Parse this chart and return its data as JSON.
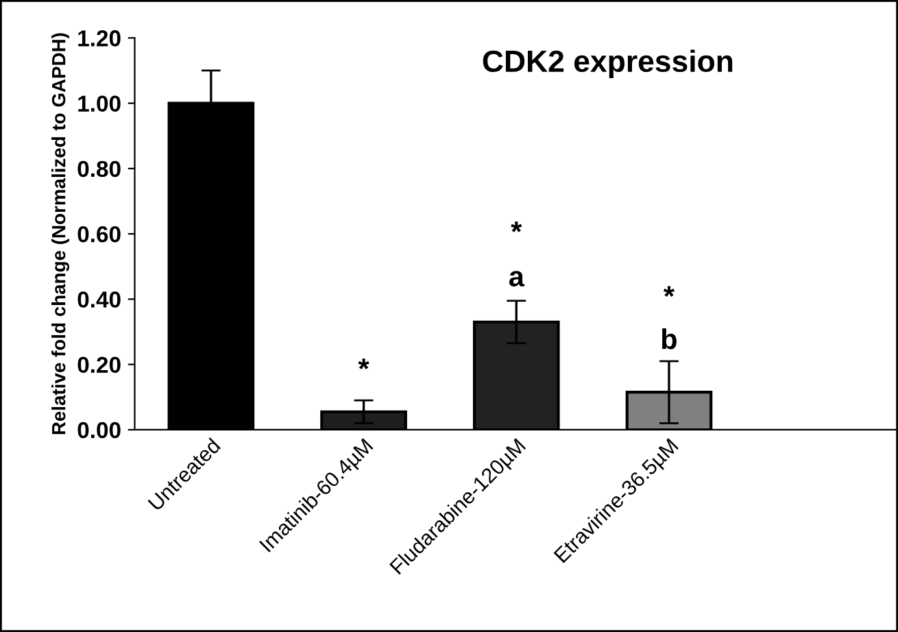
{
  "chart_data": {
    "type": "bar",
    "title": "CDK2 expression",
    "ylabel": "Relative fold change (Normalized to GAPDH)",
    "categories": [
      "Untreated",
      "Imatinib-60.4µM",
      "Fludarabine-120µM",
      "Etravirine-36.5µM"
    ],
    "values": [
      1.0,
      0.055,
      0.33,
      0.115
    ],
    "errors": [
      0.1,
      0.035,
      0.065,
      0.095
    ],
    "colors": [
      "#000000",
      "#1e1e1e",
      "#222222",
      "#808080"
    ],
    "ylim": [
      0,
      1.2
    ],
    "yticks": [
      {
        "value": 0,
        "label": "0.00"
      },
      {
        "value": 0.2,
        "label": "0.20"
      },
      {
        "value": 0.4,
        "label": "0.40"
      },
      {
        "value": 0.6,
        "label": "0.60"
      },
      {
        "value": 0.8,
        "label": "0.80"
      },
      {
        "value": 1.0,
        "label": "1.00"
      },
      {
        "value": 1.2,
        "label": "1.20"
      }
    ],
    "grid": false,
    "annotations": [
      "*",
      "*",
      "a",
      "*",
      "b"
    ]
  }
}
